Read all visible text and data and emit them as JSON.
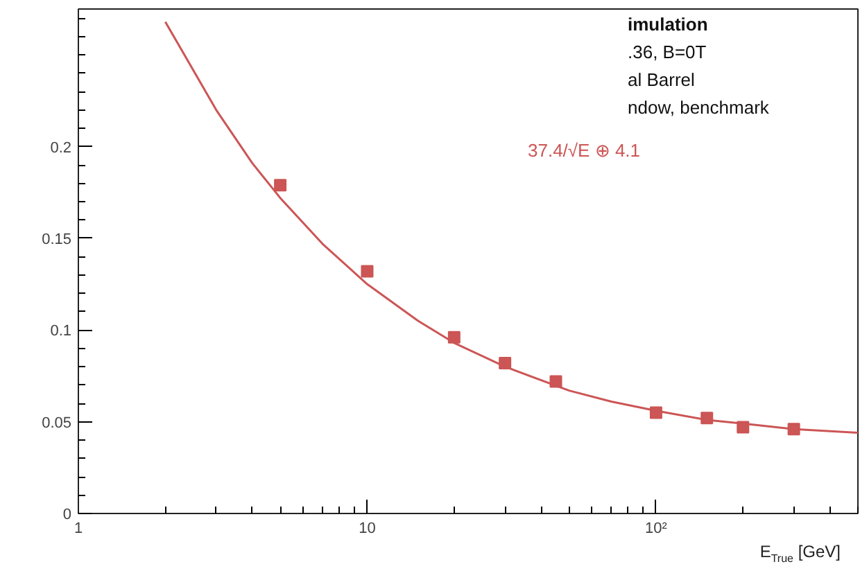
{
  "chart_data": {
    "type": "scatter",
    "xlabel": "E$_{True}$ [GeV]",
    "log": "x",
    "xlim": [
      1,
      500
    ],
    "xticks": [
      1,
      10,
      {
        "value": 100,
        "label": "10²"
      }
    ],
    "ylim": [
      0,
      0.275
    ],
    "yticks": [
      0,
      0.05,
      0.1,
      0.15,
      0.2
    ],
    "grid": false,
    "x": [
      5,
      10,
      20,
      30,
      45,
      100,
      150,
      200,
      300
    ],
    "series": [
      {
        "marker": "square",
        "color": "#cc5555",
        "values": [
          0.179,
          0.132,
          0.096,
          0.082,
          0.072,
          0.055,
          0.052,
          0.047,
          0.046
        ]
      },
      {
        "type": "line",
        "color": "#cc5555",
        "line_style": "solid",
        "x": [
          2,
          3,
          4,
          5,
          7,
          10,
          15,
          20,
          30,
          50,
          70,
          100,
          150,
          200,
          300,
          500
        ],
        "values": [
          0.268,
          0.22,
          0.191,
          0.172,
          0.147,
          0.125,
          0.105,
          0.093,
          0.08,
          0.067,
          0.061,
          0.056,
          0.051,
          0.049,
          0.046,
          0.044
        ]
      }
    ],
    "annotations": [
      "37.4/√E ⊕ 4.1",
      "imulation",
      ".36, B=0T",
      "al Barrel",
      "ndow, benchmark"
    ]
  }
}
